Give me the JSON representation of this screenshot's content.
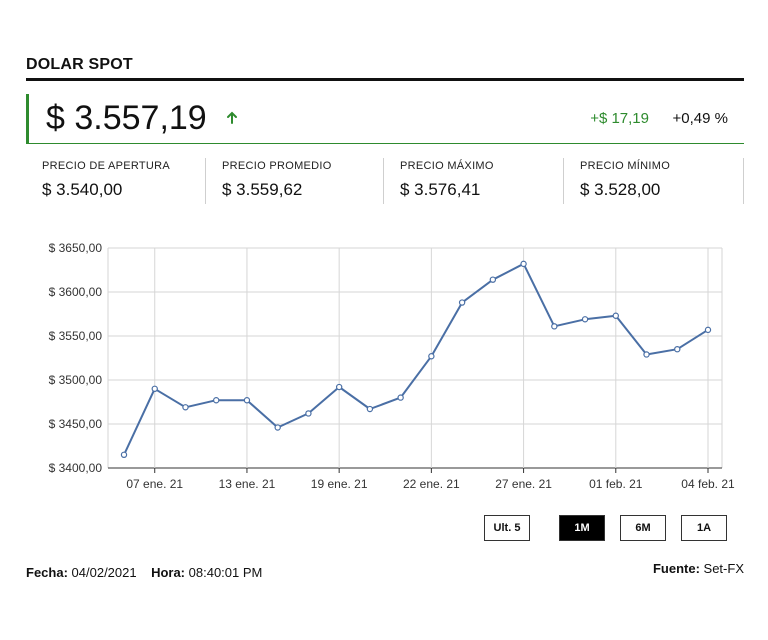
{
  "header": {
    "title": "DOLAR SPOT"
  },
  "quote": {
    "price": "$ 3.557,19",
    "change_amount": "+$ 17,19",
    "change_percent": "+0,49 %",
    "direction_icon": "arrow-up-icon",
    "up_color": "#2e8b2e"
  },
  "stats": [
    {
      "label": "PRECIO DE APERTURA",
      "value": "$ 3.540,00"
    },
    {
      "label": "PRECIO PROMEDIO",
      "value": "$ 3.559,62"
    },
    {
      "label": "PRECIO MÁXIMO",
      "value": "$ 3.576,41"
    },
    {
      "label": "PRECIO MÍNIMO",
      "value": "$ 3.528,00"
    }
  ],
  "range_buttons": [
    {
      "label": "Ult. 5",
      "active": false
    },
    {
      "label": "1M",
      "active": true
    },
    {
      "label": "6M",
      "active": false
    },
    {
      "label": "1A",
      "active": false
    }
  ],
  "footer": {
    "date_label": "Fecha:",
    "date_value": "04/02/2021",
    "time_label": "Hora:",
    "time_value": "08:40:01 PM",
    "source_label": "Fuente:",
    "source_value": "Set-FX"
  },
  "chart_data": {
    "type": "line",
    "title": "",
    "xlabel": "",
    "ylabel": "",
    "ylim": [
      3400,
      3650
    ],
    "y_ticks": [
      3400,
      3450,
      3500,
      3550,
      3600,
      3650
    ],
    "y_tick_labels": [
      "$ 3400,00",
      "$ 3450,00",
      "$ 3500,00",
      "$ 3550,00",
      "$ 3600,00",
      "$ 3650,00"
    ],
    "x_tick_labels": [
      "07 ene. 21",
      "13 ene. 21",
      "19 ene. 21",
      "22 ene. 21",
      "27 ene. 21",
      "01 feb. 21",
      "04 feb. 21"
    ],
    "x_tick_point_index": [
      1,
      4,
      7,
      10,
      13,
      16,
      19
    ],
    "grid": true,
    "line_color": "#4a6fa5",
    "series": [
      {
        "values": [
          3415,
          3490,
          3469,
          3477,
          3477,
          3446,
          3462,
          3492,
          3467,
          3480,
          3527,
          3588,
          3614,
          3632,
          3561,
          3569,
          3573,
          3529,
          3535,
          3557
        ]
      }
    ]
  }
}
